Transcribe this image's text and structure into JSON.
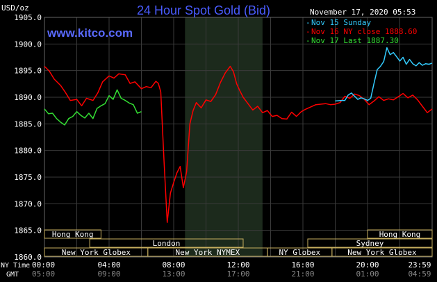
{
  "title": "24 Hour Spot Gold (Bid)",
  "watermark": "www.kitco.com",
  "timestamp": "November 17, 2020 05:53",
  "y_unit_label": "USD/oz",
  "ny_time_label": "NY Time",
  "gmt_label": "GMT",
  "legend": [
    {
      "label": "Nov 15 Sunday",
      "color": "#33ccff"
    },
    {
      "label": "Nov 16 NY close 1888.60",
      "color": "#ff0000"
    },
    {
      "label": "Nov 17 Last 1887.30",
      "color": "#33dd33"
    }
  ],
  "colors": {
    "background": "#000000",
    "grid": "#3a3a3a",
    "axis_text": "#ffffff",
    "title": "#4a5cff",
    "watermark": "#5a6aff",
    "session_shade": "#1c2a1c",
    "session_box": "#c8b060",
    "sunday": "#33ccff",
    "nov16": "#ff0000",
    "nov17": "#33dd33"
  },
  "sessions": {
    "row1": [
      "Hong Kong",
      "Hong Kong"
    ],
    "row2": [
      "London",
      "Sydney"
    ],
    "row3": [
      "New York Globex",
      "New York NYMEX",
      "NY Globex",
      "New York Globex"
    ]
  },
  "chart_data": {
    "type": "line",
    "title": "24 Hour Spot Gold (Bid)",
    "ylabel": "USD/oz",
    "ylim": [
      1860,
      1905
    ],
    "yticks": [
      "1905.0",
      "1900.0",
      "1895.0",
      "1890.0",
      "1885.0",
      "1880.0",
      "1875.0",
      "1870.0",
      "1865.0",
      "1860.0"
    ],
    "ny_time_ticks": [
      "00:00",
      "04:00",
      "08:00",
      "12:00",
      "16:00",
      "20:00",
      "23:59"
    ],
    "gmt_ticks": [
      "05:00",
      "09:00",
      "13:00",
      "17:00",
      "21:00",
      "01:00",
      "04:59"
    ],
    "xlim_hours": [
      0,
      24
    ],
    "series": [
      {
        "name": "Nov 15 Sunday",
        "x": [
          18.0,
          18.4,
          18.6,
          18.8,
          19.0,
          19.2,
          19.4,
          19.6,
          19.8,
          20.0,
          20.2,
          20.4,
          20.6,
          20.8,
          21.0,
          21.2,
          21.4,
          21.6,
          21.8,
          22.0,
          22.2,
          22.4,
          22.6,
          22.8,
          23.0,
          23.2,
          23.4,
          23.6,
          23.8,
          24.0
        ],
        "y": [
          1889.3,
          1889.4,
          1889.4,
          1890.4,
          1890.8,
          1890.2,
          1889.6,
          1889.9,
          1889.7,
          1889.4,
          1889.8,
          1892.6,
          1895.2,
          1895.8,
          1896.7,
          1899.3,
          1898.0,
          1898.4,
          1897.6,
          1896.8,
          1897.5,
          1896.2,
          1897.1,
          1896.3,
          1895.9,
          1896.5,
          1896.0,
          1896.3,
          1896.2,
          1896.4
        ]
      },
      {
        "name": "Nov 16 NY close 1888.60",
        "x": [
          0.0,
          0.3,
          0.6,
          1.0,
          1.3,
          1.6,
          2.0,
          2.3,
          2.6,
          3.0,
          3.3,
          3.6,
          4.0,
          4.3,
          4.6,
          5.0,
          5.3,
          5.6,
          6.0,
          6.3,
          6.6,
          6.9,
          7.05,
          7.2,
          7.4,
          7.6,
          7.8,
          8.0,
          8.2,
          8.4,
          8.6,
          8.8,
          9.0,
          9.2,
          9.4,
          9.7,
          10.0,
          10.3,
          10.6,
          10.9,
          11.2,
          11.5,
          11.7,
          11.9,
          12.1,
          12.3,
          12.6,
          12.9,
          13.2,
          13.5,
          13.8,
          14.1,
          14.4,
          14.7,
          15.0,
          15.3,
          15.6,
          15.9,
          16.2,
          16.5,
          16.8,
          17.1,
          17.4,
          17.7,
          18.0,
          18.3,
          18.6,
          18.9,
          19.2,
          19.5,
          19.8,
          20.1,
          20.4,
          20.7,
          21.0,
          21.3,
          21.6,
          21.9,
          22.2,
          22.5,
          22.8,
          23.1,
          23.4,
          23.7,
          24.0
        ],
        "y": [
          1895.8,
          1894.9,
          1893.4,
          1892.2,
          1890.9,
          1889.4,
          1889.6,
          1888.4,
          1889.8,
          1889.4,
          1890.8,
          1892.9,
          1894.0,
          1893.6,
          1894.4,
          1894.2,
          1892.6,
          1892.9,
          1891.6,
          1892.0,
          1891.8,
          1893.0,
          1892.6,
          1891.0,
          1878.0,
          1866.5,
          1872.0,
          1874.0,
          1875.8,
          1877.0,
          1873.0,
          1876.0,
          1885.0,
          1887.5,
          1889.0,
          1888.0,
          1889.5,
          1889.2,
          1890.5,
          1892.8,
          1894.6,
          1895.8,
          1894.8,
          1892.5,
          1891.2,
          1890.0,
          1888.8,
          1887.6,
          1888.3,
          1887.1,
          1887.5,
          1886.4,
          1886.6,
          1886.0,
          1885.9,
          1887.2,
          1886.4,
          1887.3,
          1887.8,
          1888.2,
          1888.6,
          1888.7,
          1888.8,
          1888.6,
          1888.7,
          1889.0,
          1890.2,
          1889.8,
          1890.6,
          1890.3,
          1889.6,
          1888.6,
          1889.3,
          1890.1,
          1889.4,
          1889.7,
          1889.5,
          1890.1,
          1890.7,
          1889.9,
          1890.4,
          1889.5,
          1888.3,
          1887.1,
          1887.8
        ]
      },
      {
        "name": "Nov 17 Last 1887.30",
        "x": [
          0.0,
          0.25,
          0.5,
          0.75,
          1.0,
          1.25,
          1.5,
          1.75,
          2.0,
          2.25,
          2.5,
          2.75,
          3.0,
          3.25,
          3.5,
          3.75,
          4.0,
          4.25,
          4.5,
          4.75,
          5.0,
          5.25,
          5.5,
          5.75,
          6.0
        ],
        "y": [
          1887.8,
          1886.9,
          1887.0,
          1886.0,
          1885.3,
          1884.8,
          1886.0,
          1886.4,
          1887.3,
          1886.6,
          1886.1,
          1887.0,
          1886.0,
          1887.9,
          1888.4,
          1888.8,
          1890.3,
          1889.6,
          1891.4,
          1889.8,
          1889.4,
          1888.9,
          1888.6,
          1887.0,
          1887.3
        ]
      }
    ]
  }
}
